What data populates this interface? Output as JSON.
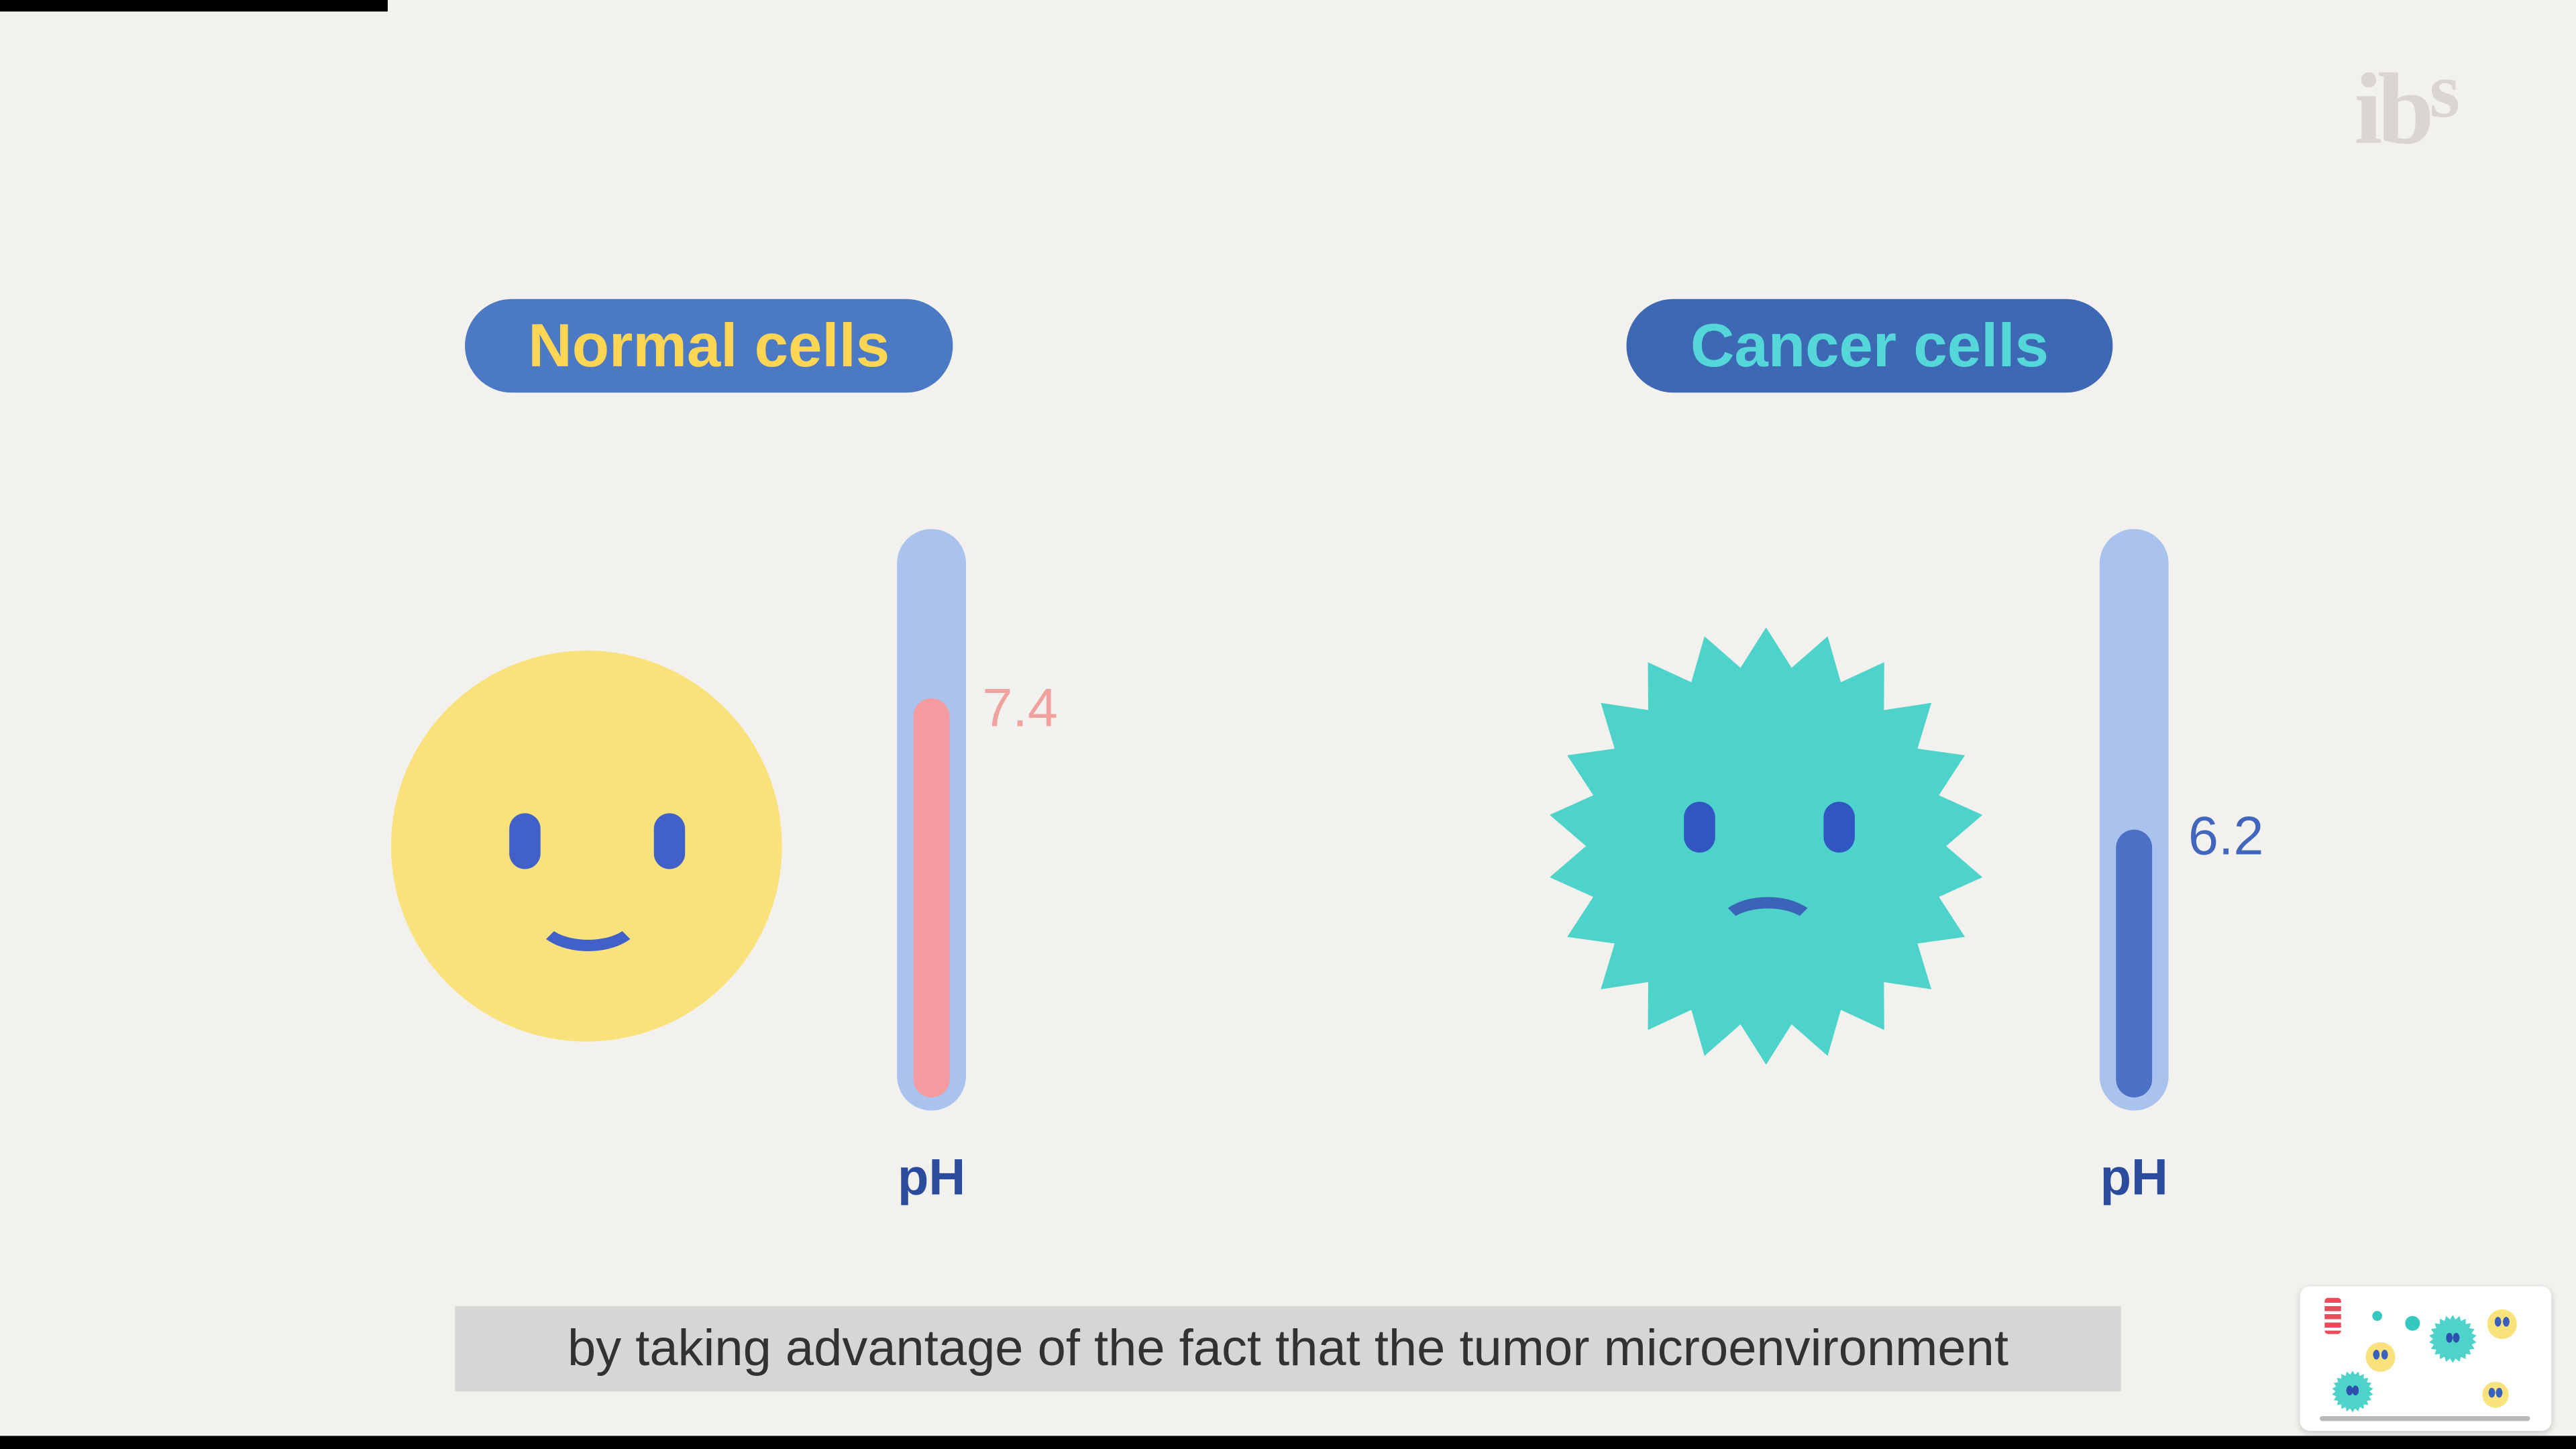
{
  "logo": {
    "text_main": "ib",
    "text_super": "s"
  },
  "normal_panel": {
    "label": "Normal cells",
    "ph_value": "7.4",
    "ph_unit": "pH"
  },
  "cancer_panel": {
    "label": "Cancer cells",
    "ph_value": "6.2",
    "ph_unit": "pH"
  },
  "subtitle": {
    "text": "by taking advantage of the fact that the tumor microenvironment"
  },
  "colors": {
    "background": "#f3f1ee",
    "normal_pill_bg": "#4b79c4",
    "normal_pill_text": "#ffd554",
    "cancer_pill_bg": "#3c68b4",
    "cancer_pill_text": "#55d7d9",
    "normal_cell": "#f9e17c",
    "cancer_cell": "#4dd3ca",
    "face_blue": "#4161c9",
    "thermometer_tube": "#a9c3ee",
    "normal_fill": "#f39b9e",
    "cancer_fill": "#4b70c4",
    "ph_text": "#2b4b9d",
    "normal_value_text": "#f0a29f",
    "cancer_value_text": "#4166bd",
    "subtitle_bg": "#d8d6d4",
    "subtitle_text": "#323232",
    "logo": "#d9d6d2"
  }
}
